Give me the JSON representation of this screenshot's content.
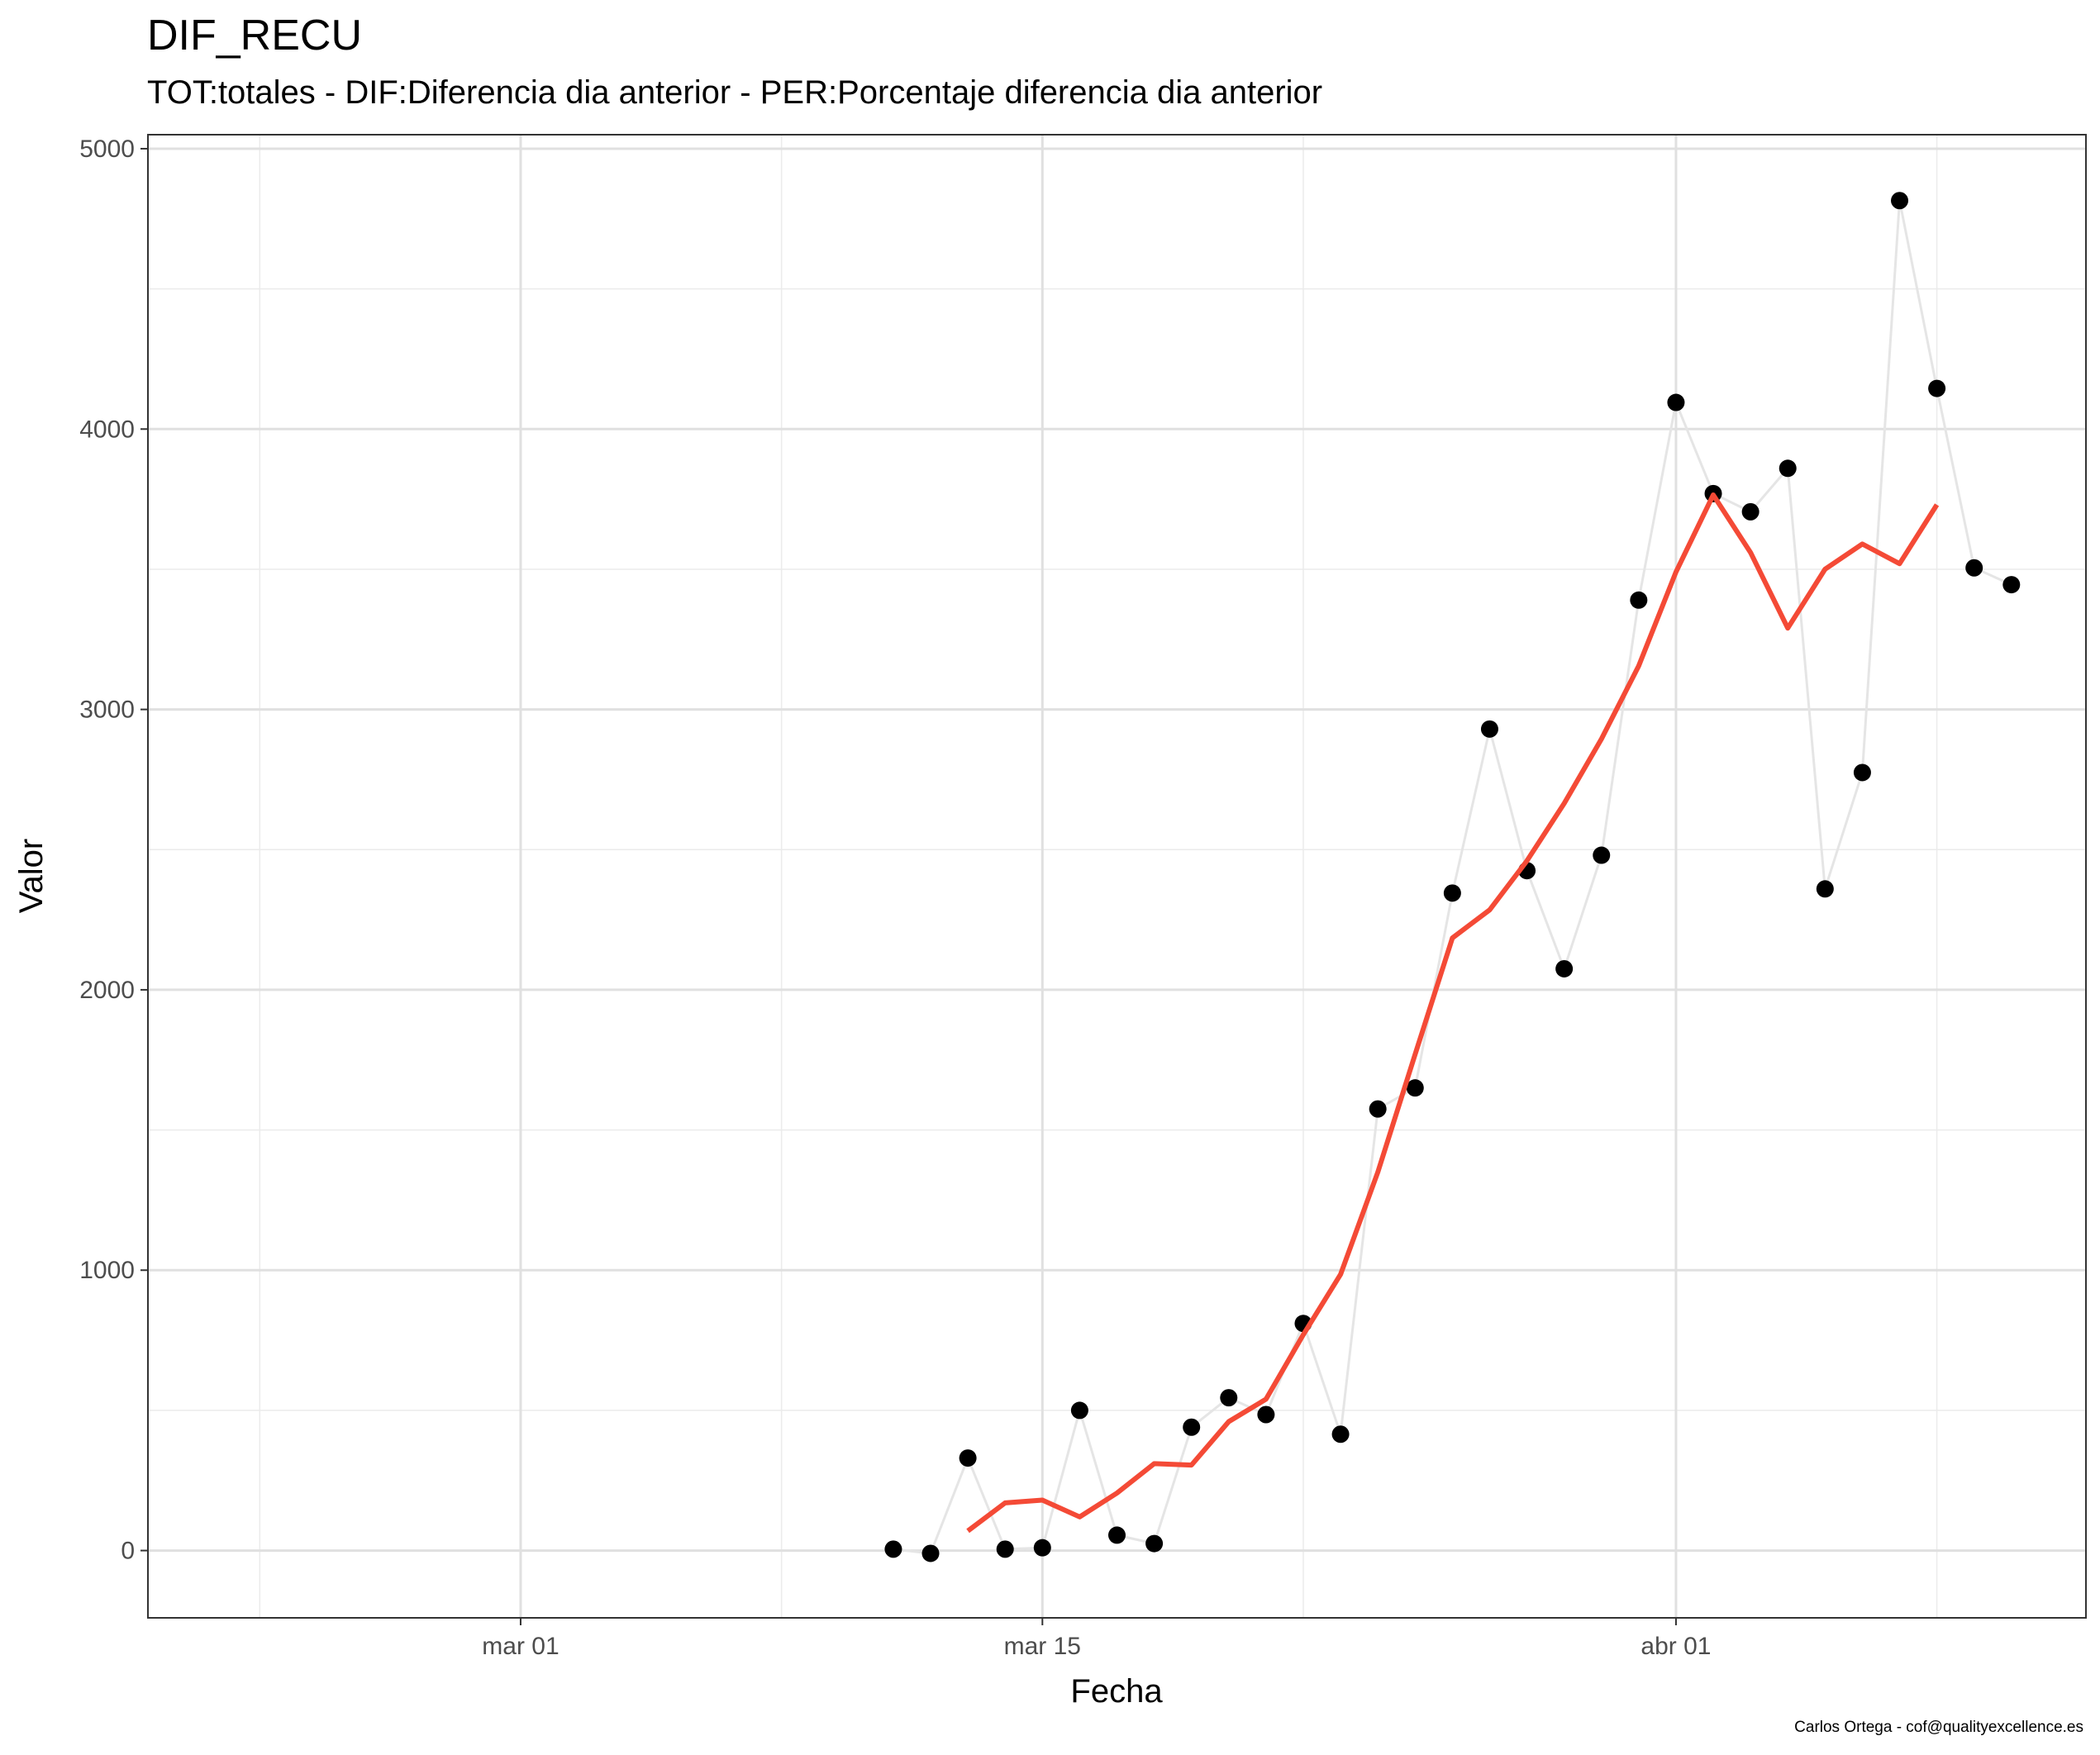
{
  "chart_data": {
    "type": "line",
    "title": "DIF_RECU",
    "subtitle": "TOT:totales - DIF:Diferencia dia anterior - PER:Porcentaje diferencia dia anterior",
    "xlabel": "Fecha",
    "ylabel": "Valor",
    "caption": "Carlos Ortega - cof@qualityexcellence.es",
    "x_range": [
      "2020-02-20",
      "2020-04-12"
    ],
    "ylim": [
      -240,
      5050
    ],
    "x_ticks": [
      {
        "date": "2020-03-01",
        "label": "mar 01"
      },
      {
        "date": "2020-03-15",
        "label": "mar 15"
      },
      {
        "date": "2020-04-01",
        "label": "abr 01"
      }
    ],
    "x_minor_ticks": [
      "2020-02-23",
      "2020-03-08",
      "2020-03-22",
      "2020-04-08"
    ],
    "y_ticks": [
      {
        "value": 0,
        "label": "0"
      },
      {
        "value": 1000,
        "label": "1000"
      },
      {
        "value": 2000,
        "label": "2000"
      },
      {
        "value": 3000,
        "label": "3000"
      },
      {
        "value": 4000,
        "label": "4000"
      },
      {
        "value": 5000,
        "label": "5000"
      }
    ],
    "y_minor_ticks": [
      500,
      1500,
      2500,
      3500,
      4500
    ],
    "grid": true,
    "series": [
      {
        "style": "points-with-line",
        "color": "#000000",
        "line_color": "#e5e5e5",
        "x": [
          "2020-03-11",
          "2020-03-12",
          "2020-03-13",
          "2020-03-14",
          "2020-03-15",
          "2020-03-16",
          "2020-03-17",
          "2020-03-18",
          "2020-03-19",
          "2020-03-20",
          "2020-03-21",
          "2020-03-22",
          "2020-03-23",
          "2020-03-24",
          "2020-03-25",
          "2020-03-26",
          "2020-03-27",
          "2020-03-28",
          "2020-03-29",
          "2020-03-30",
          "2020-03-31",
          "2020-04-01",
          "2020-04-02",
          "2020-04-03",
          "2020-04-04",
          "2020-04-05",
          "2020-04-06",
          "2020-04-07",
          "2020-04-08",
          "2020-04-09",
          "2020-04-10"
        ],
        "y": [
          5,
          -10,
          330,
          5,
          10,
          500,
          55,
          25,
          440,
          545,
          485,
          810,
          415,
          1575,
          1650,
          2345,
          2930,
          2425,
          2075,
          2480,
          3390,
          4095,
          3770,
          3705,
          3860,
          2360,
          2775,
          4815,
          4145,
          3505,
          3445
        ]
      },
      {
        "style": "line",
        "color": "#f44a36",
        "x": [
          "2020-03-13",
          "2020-03-14",
          "2020-03-15",
          "2020-03-16",
          "2020-03-17",
          "2020-03-18",
          "2020-03-19",
          "2020-03-20",
          "2020-03-21",
          "2020-03-22",
          "2020-03-23",
          "2020-03-24",
          "2020-03-25",
          "2020-03-26",
          "2020-03-27",
          "2020-03-28",
          "2020-03-29",
          "2020-03-30",
          "2020-03-31",
          "2020-04-01",
          "2020-04-02",
          "2020-04-03",
          "2020-04-04",
          "2020-04-05",
          "2020-04-06",
          "2020-04-07",
          "2020-04-08"
        ],
        "y": [
          70,
          170,
          180,
          120,
          205,
          310,
          305,
          460,
          540,
          770,
          985,
          1350,
          1770,
          2185,
          2285,
          2460,
          2665,
          2895,
          3155,
          3490,
          3765,
          3560,
          3290,
          3500,
          3590,
          3520,
          3730
        ]
      }
    ]
  }
}
